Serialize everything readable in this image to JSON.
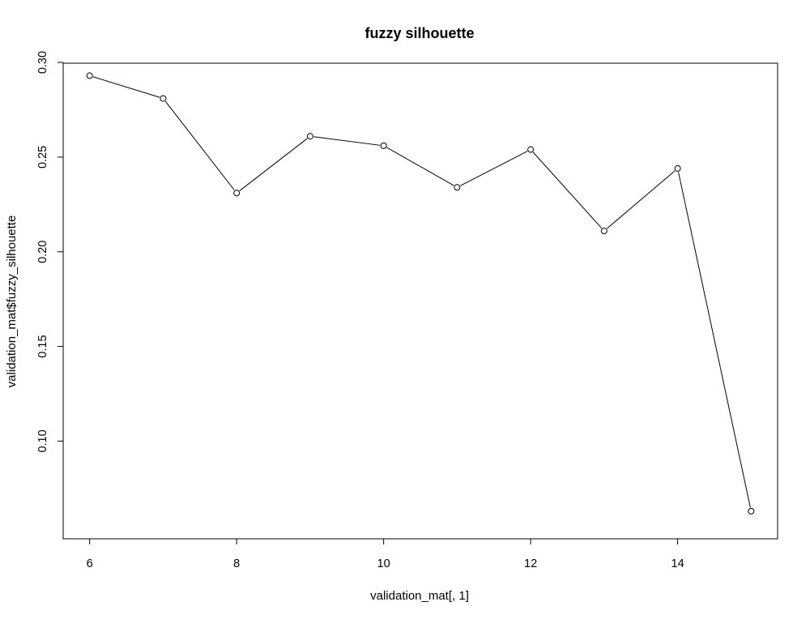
{
  "chart_data": {
    "type": "line",
    "title": "fuzzy silhouette",
    "xlabel": "validation_mat[, 1]",
    "ylabel": "validation_mat$fuzzy_silhouette",
    "x": [
      6,
      7,
      8,
      9,
      10,
      11,
      12,
      13,
      14,
      15
    ],
    "y": [
      0.293,
      0.281,
      0.231,
      0.261,
      0.256,
      0.234,
      0.254,
      0.211,
      0.244,
      0.063
    ],
    "xlim": [
      5.64,
      15.36
    ],
    "ylim": [
      0.0484,
      0.2996
    ],
    "xticks": [
      6,
      8,
      10,
      12,
      14
    ],
    "xtick_labels": [
      "6",
      "8",
      "10",
      "12",
      "14"
    ],
    "yticks": [
      0.1,
      0.15,
      0.2,
      0.25,
      0.3
    ],
    "ytick_labels": [
      "0.10",
      "0.15",
      "0.20",
      "0.25",
      "0.30"
    ],
    "grid": false,
    "marker": "open-circle",
    "line_color": "#000000"
  }
}
